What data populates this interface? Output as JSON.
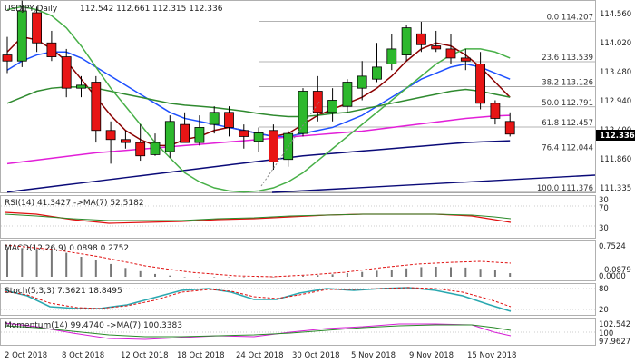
{
  "chart_data": {
    "type": "candlestick",
    "title": "USDJPY,Daily",
    "ohlc_header": "112.542 112.661 112.315 112.336",
    "current_price": "112.336",
    "ylim": [
      111.375,
      114.5
    ],
    "price_axis": [
      "114.560",
      "114.020",
      "113.480",
      "112.940",
      "112.400",
      "111.860",
      "111.335"
    ],
    "dates": [
      "2 Oct 2018",
      "8 Oct 2018",
      "12 Oct 2018",
      "18 Oct 2018",
      "24 Oct 2018",
      "30 Oct 2018",
      "5 Nov 2018",
      "9 Nov 2018",
      "15 Nov 2018"
    ],
    "candles": [
      {
        "o": 113.65,
        "h": 113.95,
        "l": 113.35,
        "c": 113.55
      },
      {
        "o": 113.55,
        "h": 114.55,
        "l": 113.45,
        "c": 114.38
      },
      {
        "o": 114.35,
        "h": 114.45,
        "l": 113.7,
        "c": 113.85
      },
      {
        "o": 113.85,
        "h": 114.05,
        "l": 113.55,
        "c": 113.62
      },
      {
        "o": 113.62,
        "h": 113.75,
        "l": 112.95,
        "c": 113.1
      },
      {
        "o": 113.1,
        "h": 113.3,
        "l": 112.95,
        "c": 113.15
      },
      {
        "o": 113.2,
        "h": 113.3,
        "l": 112.2,
        "c": 112.4
      },
      {
        "o": 112.4,
        "h": 112.55,
        "l": 111.85,
        "c": 112.25
      },
      {
        "o": 112.25,
        "h": 112.4,
        "l": 112.1,
        "c": 112.2
      },
      {
        "o": 112.2,
        "h": 112.5,
        "l": 111.9,
        "c": 111.98
      },
      {
        "o": 112.0,
        "h": 112.35,
        "l": 111.98,
        "c": 112.2
      },
      {
        "o": 112.05,
        "h": 112.65,
        "l": 111.95,
        "c": 112.55
      },
      {
        "o": 112.5,
        "h": 112.7,
        "l": 112.2,
        "c": 112.2
      },
      {
        "o": 112.2,
        "h": 112.65,
        "l": 112.15,
        "c": 112.45
      },
      {
        "o": 112.5,
        "h": 112.8,
        "l": 112.35,
        "c": 112.7
      },
      {
        "o": 112.7,
        "h": 112.8,
        "l": 112.3,
        "c": 112.45
      },
      {
        "o": 112.4,
        "h": 112.5,
        "l": 112.1,
        "c": 112.3
      },
      {
        "o": 112.22,
        "h": 112.45,
        "l": 112.05,
        "c": 112.36
      },
      {
        "o": 112.4,
        "h": 112.5,
        "l": 111.75,
        "c": 111.88
      },
      {
        "o": 111.92,
        "h": 112.4,
        "l": 111.8,
        "c": 112.35
      },
      {
        "o": 112.35,
        "h": 113.1,
        "l": 112.3,
        "c": 113.05
      },
      {
        "o": 113.05,
        "h": 113.3,
        "l": 112.55,
        "c": 112.7
      },
      {
        "o": 112.7,
        "h": 113.1,
        "l": 112.55,
        "c": 112.9
      },
      {
        "o": 112.8,
        "h": 113.25,
        "l": 112.7,
        "c": 113.2
      },
      {
        "o": 113.1,
        "h": 113.55,
        "l": 112.9,
        "c": 113.3
      },
      {
        "o": 113.25,
        "h": 113.85,
        "l": 113.2,
        "c": 113.45
      },
      {
        "o": 113.5,
        "h": 114.0,
        "l": 113.4,
        "c": 113.75
      },
      {
        "o": 113.65,
        "h": 114.15,
        "l": 113.55,
        "c": 114.1
      },
      {
        "o": 114.0,
        "h": 114.2,
        "l": 113.7,
        "c": 113.82
      },
      {
        "o": 113.8,
        "h": 114.05,
        "l": 113.7,
        "c": 113.75
      },
      {
        "o": 113.75,
        "h": 114.0,
        "l": 113.5,
        "c": 113.6
      },
      {
        "o": 113.6,
        "h": 113.75,
        "l": 113.4,
        "c": 113.55
      },
      {
        "o": 113.5,
        "h": 113.7,
        "l": 112.75,
        "c": 112.85
      },
      {
        "o": 112.85,
        "h": 112.9,
        "l": 112.5,
        "c": 112.6
      },
      {
        "o": 112.55,
        "h": 112.7,
        "l": 112.3,
        "c": 112.34
      }
    ],
    "fibonacci": [
      {
        "label": "0.0 114.207",
        "value": 114.207
      },
      {
        "label": "23.6 113.539",
        "value": 113.539
      },
      {
        "label": "38.2 113.126",
        "value": 113.126
      },
      {
        "label": "50.0 112.791",
        "value": 112.791
      },
      {
        "label": "61.8 112.457",
        "value": 112.457
      },
      {
        "label": "76.4 112.044",
        "value": 112.044
      },
      {
        "label": "100.0 111.376",
        "value": 111.376
      }
    ],
    "moving_averages": [
      {
        "color": "#8b0000",
        "values": [
          113.7,
          113.95,
          113.9,
          113.75,
          113.55,
          113.25,
          112.95,
          112.65,
          112.4,
          112.25,
          112.15,
          112.15,
          112.25,
          112.3,
          112.4,
          112.45,
          112.4,
          112.35,
          112.3,
          112.35,
          112.5,
          112.65,
          112.75,
          112.85,
          112.95,
          113.1,
          113.3,
          113.55,
          113.75,
          113.85,
          113.8,
          113.65,
          113.45,
          113.2,
          112.95
        ]
      },
      {
        "color": "#1e50ff",
        "values": [
          113.4,
          113.55,
          113.65,
          113.7,
          113.7,
          113.6,
          113.45,
          113.3,
          113.15,
          113.0,
          112.85,
          112.7,
          112.6,
          112.55,
          112.5,
          112.45,
          112.4,
          112.35,
          112.3,
          112.3,
          112.35,
          112.4,
          112.45,
          112.55,
          112.65,
          112.8,
          112.95,
          113.1,
          113.25,
          113.35,
          113.45,
          113.5,
          113.45,
          113.35,
          113.25
        ]
      },
      {
        "color": "#2f8a2f",
        "values": [
          112.85,
          112.95,
          113.05,
          113.1,
          113.12,
          113.12,
          113.1,
          113.05,
          113.0,
          112.95,
          112.9,
          112.85,
          112.82,
          112.8,
          112.78,
          112.75,
          112.72,
          112.68,
          112.65,
          112.63,
          112.63,
          112.65,
          112.68,
          112.7,
          112.75,
          112.8,
          112.85,
          112.9,
          112.95,
          113.0,
          113.05,
          113.08,
          113.05,
          113.0,
          112.95
        ]
      },
      {
        "color": "#e21fd8",
        "values": [
          111.85,
          111.88,
          111.91,
          111.94,
          111.97,
          112.0,
          112.03,
          112.05,
          112.07,
          112.09,
          112.11,
          112.13,
          112.15,
          112.17,
          112.19,
          112.21,
          112.23,
          112.25,
          112.27,
          112.29,
          112.31,
          112.33,
          112.35,
          112.37,
          112.39,
          112.42,
          112.45,
          112.48,
          112.51,
          112.54,
          112.57,
          112.6,
          112.62,
          112.64,
          112.65
        ]
      },
      {
        "color": "#0a0a78",
        "values": [
          111.38,
          111.41,
          111.44,
          111.47,
          111.5,
          111.53,
          111.56,
          111.59,
          111.62,
          111.65,
          111.68,
          111.71,
          111.74,
          111.77,
          111.8,
          111.83,
          111.86,
          111.89,
          111.92,
          111.95,
          111.98,
          112.0,
          112.02,
          112.04,
          112.06,
          112.08,
          112.1,
          112.12,
          112.14,
          112.16,
          112.18,
          112.2,
          112.21,
          112.22,
          112.23
        ]
      },
      {
        "color": "#48b048",
        "values": [
          114.4,
          114.45,
          114.4,
          114.3,
          114.1,
          113.8,
          113.45,
          113.1,
          112.8,
          112.5,
          112.2,
          111.95,
          111.7,
          111.55,
          111.45,
          111.4,
          111.38,
          111.4,
          111.45,
          111.55,
          111.7,
          111.9,
          112.1,
          112.3,
          112.5,
          112.7,
          112.9,
          113.1,
          113.3,
          113.5,
          113.65,
          113.75,
          113.75,
          113.7,
          113.6
        ]
      }
    ],
    "indicators": [
      {
        "name": "RSI",
        "label": "RSI(14) 41.3427  ->MA(7) 52.5182",
        "axis": [
          "70",
          "30"
        ],
        "extra_axis": "30"
      },
      {
        "name": "MACD",
        "label": "MACD(12,26,9) 0.0898 0.2752",
        "axis": [
          "0.7524",
          "0.0879",
          "0.0000"
        ]
      },
      {
        "name": "Stoch",
        "label": "Stoch(5,3,3) 7.3621 18.8495",
        "axis": [
          "80",
          "20"
        ]
      },
      {
        "name": "Momentum",
        "label": "Momentum(14) 99.4740  ->MA(7) 100.3383",
        "axis": [
          "102.542",
          "100",
          "97.9627"
        ]
      }
    ]
  },
  "colors": {
    "bull": "#2db82d",
    "bear": "#e81515",
    "current_bg": "#000000",
    "grid": "#c8c8c8"
  }
}
